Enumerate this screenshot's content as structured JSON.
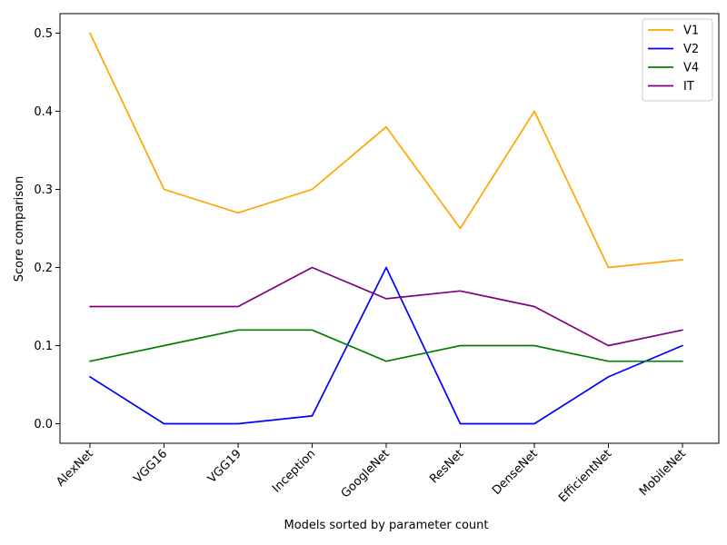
{
  "chart_data": {
    "type": "line",
    "categories": [
      "AlexNet",
      "VGG16",
      "VGG19",
      "Inception",
      "GoogleNet",
      "ResNet",
      "DenseNet",
      "EfficientNet",
      "MobileNet"
    ],
    "series": [
      {
        "name": "V1",
        "color": "#ffa500",
        "values": [
          0.5,
          0.3,
          0.27,
          0.3,
          0.38,
          0.25,
          0.4,
          0.2,
          0.21
        ]
      },
      {
        "name": "V2",
        "color": "#0000ff",
        "values": [
          0.06,
          0.0,
          0.0,
          0.01,
          0.2,
          0.0,
          0.0,
          0.06,
          0.1
        ]
      },
      {
        "name": "V4",
        "color": "#008000",
        "values": [
          0.08,
          0.1,
          0.12,
          0.12,
          0.08,
          0.1,
          0.1,
          0.08,
          0.08
        ]
      },
      {
        "name": "IT",
        "color": "#800080",
        "values": [
          0.15,
          0.15,
          0.15,
          0.2,
          0.16,
          0.17,
          0.15,
          0.1,
          0.12
        ]
      }
    ],
    "xlabel": "Models sorted by parameter count",
    "ylabel": "Score comparison",
    "ylim": [
      -0.025,
      0.525
    ],
    "yticks": [
      "0.0",
      "0.1",
      "0.2",
      "0.3",
      "0.4",
      "0.5"
    ],
    "grid": false,
    "legend": "top-right"
  }
}
